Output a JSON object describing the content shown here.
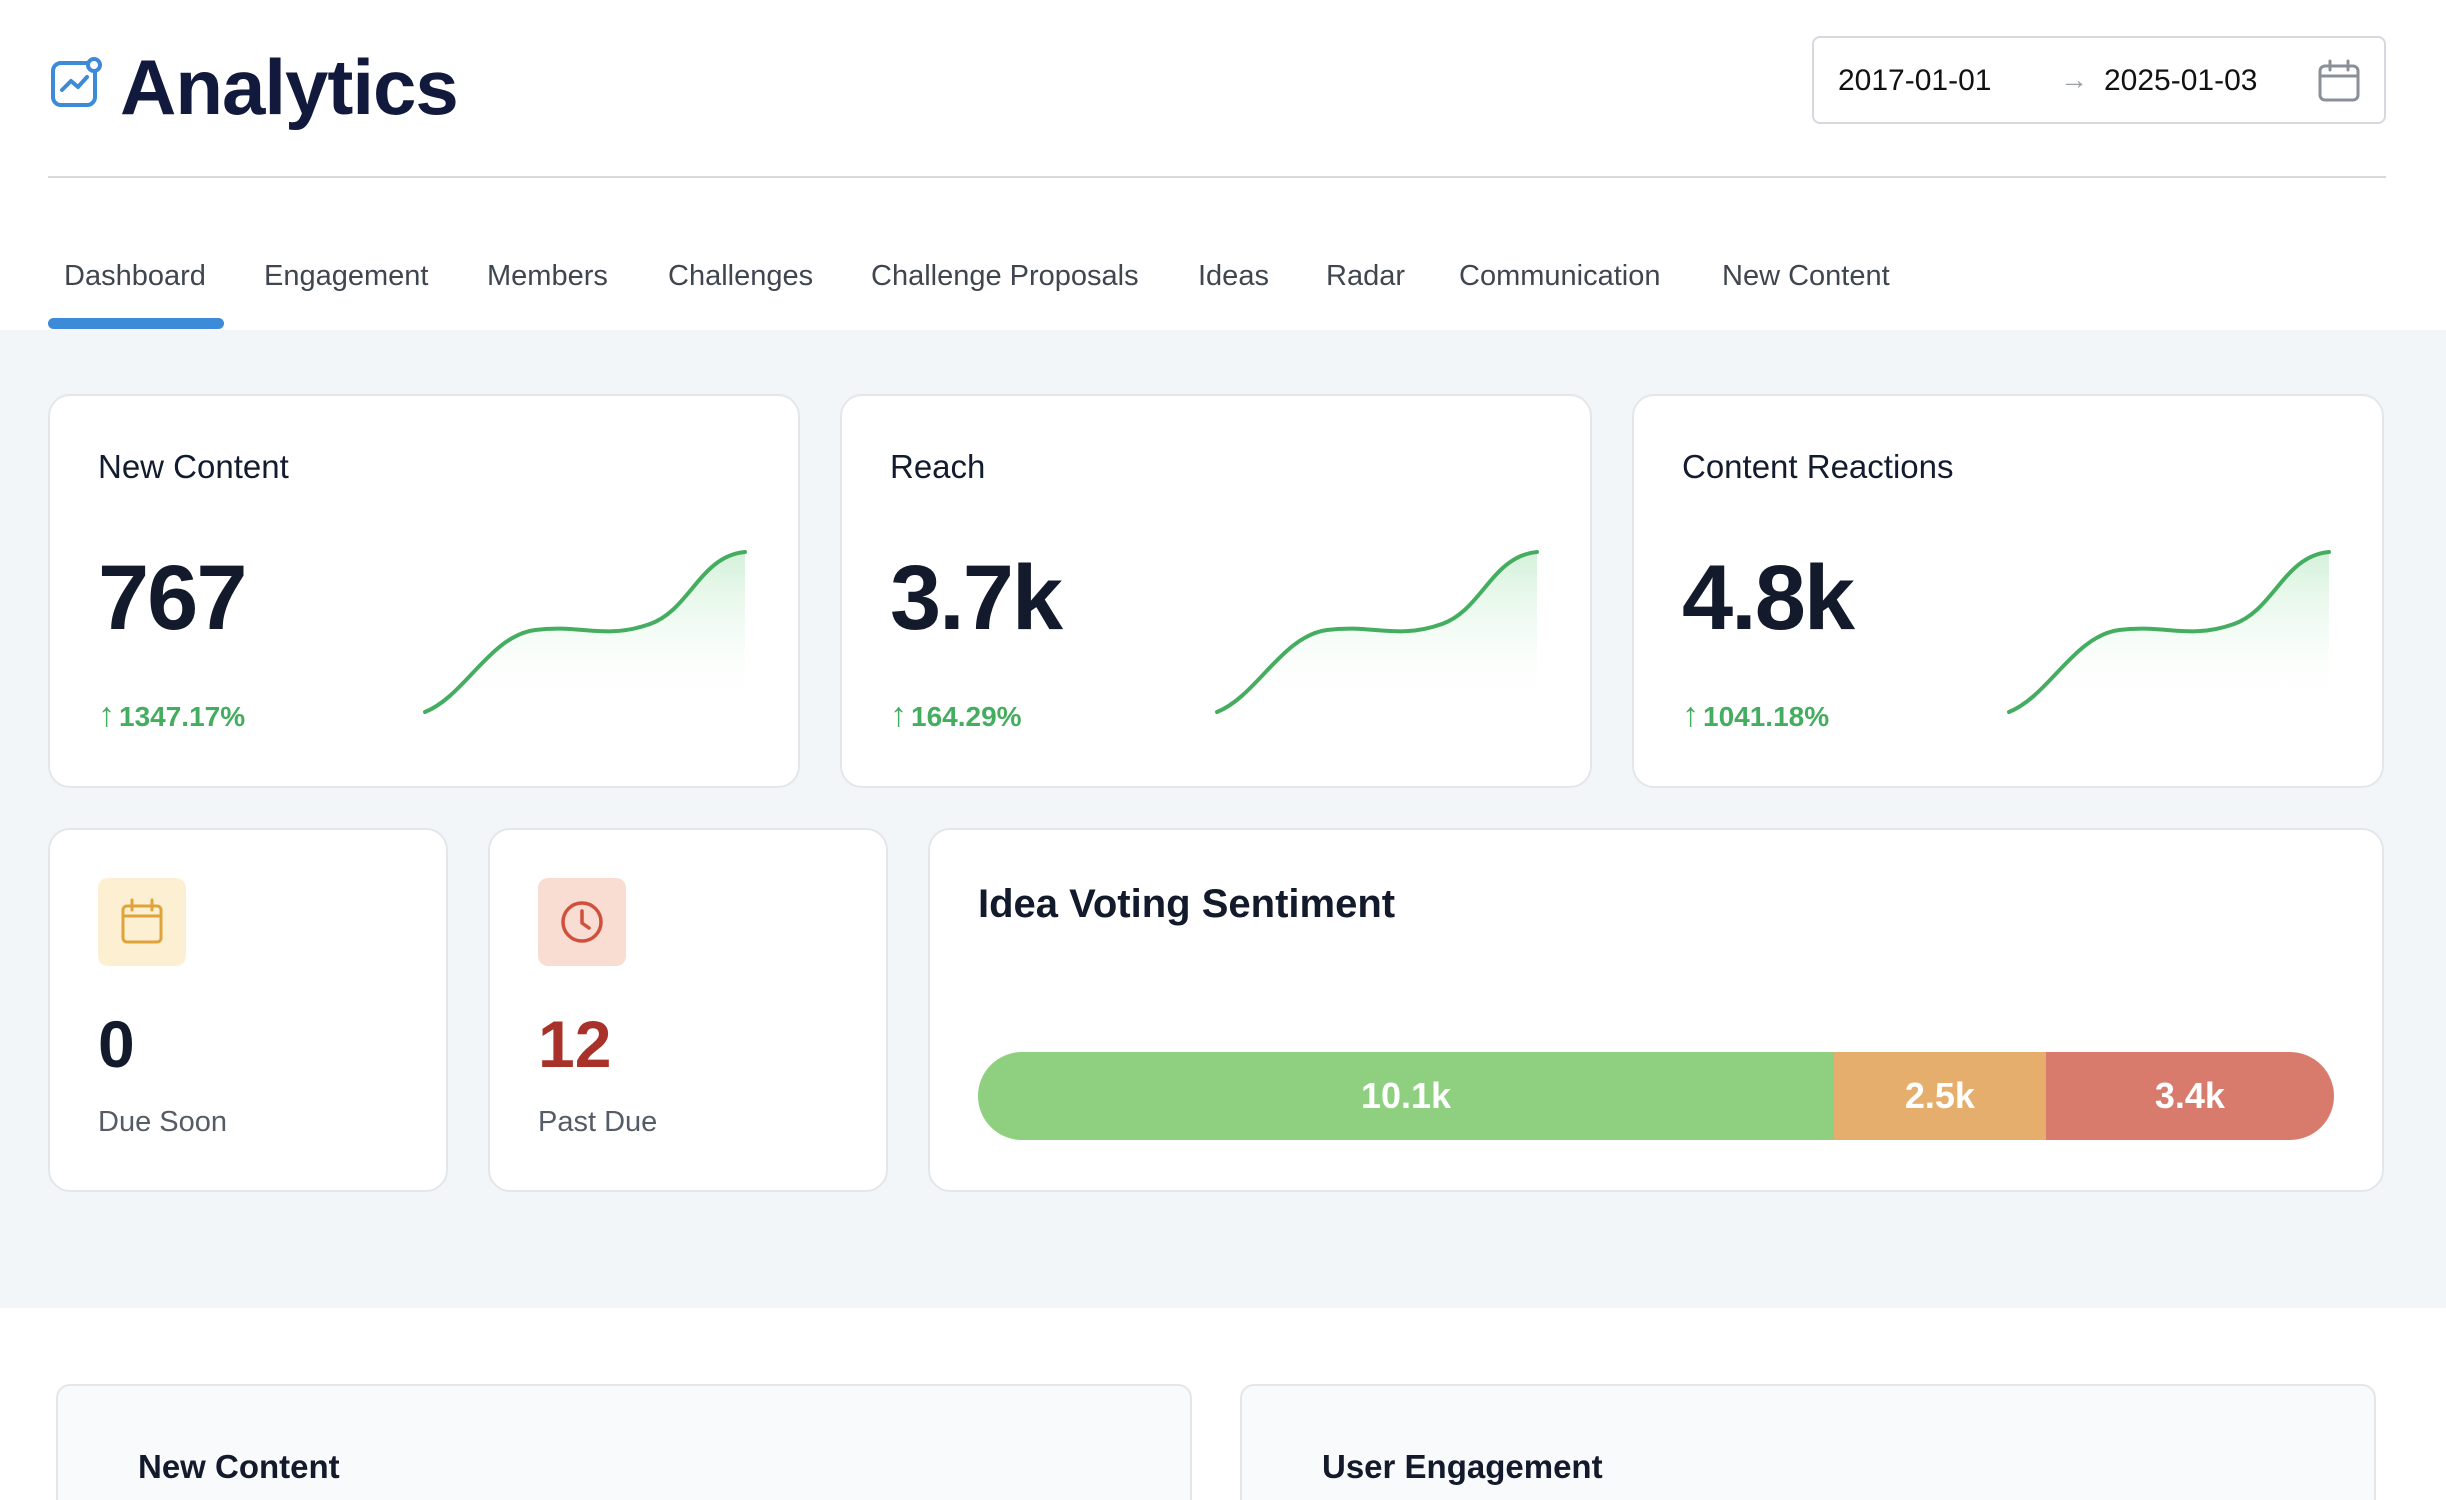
{
  "header": {
    "title": "Analytics",
    "icon": "analytics-chart-icon",
    "date_start": "2017-01-01",
    "date_separator": "→",
    "date_end": "2025-01-03",
    "calendar_icon": "calendar-icon"
  },
  "tabs": [
    {
      "label": "Dashboard",
      "active": true
    },
    {
      "label": "Engagement"
    },
    {
      "label": "Members"
    },
    {
      "label": "Challenges"
    },
    {
      "label": "Challenge Proposals"
    },
    {
      "label": "Ideas"
    },
    {
      "label": "Radar"
    },
    {
      "label": "Communication"
    },
    {
      "label": "New Content"
    }
  ],
  "colors": {
    "accent": "#3c8ad8",
    "positive": "#44ad5f",
    "sent_positive": "#8ed080",
    "sent_neutral": "#e6ae6c",
    "sent_negative": "#d97b6c",
    "due_soon_bg": "#fdf0d2",
    "past_due_bg": "#f9dcd2",
    "past_due_value": "#a8322a"
  },
  "stats": [
    {
      "title": "New Content",
      "value": "767",
      "change": "1347.17%",
      "trend": "up"
    },
    {
      "title": "Reach",
      "value": "3.7k",
      "change": "164.29%",
      "trend": "up"
    },
    {
      "title": "Content Reactions",
      "value": "4.8k",
      "change": "1041.18%",
      "trend": "up"
    }
  ],
  "due": {
    "due_soon": {
      "value": "0",
      "label": "Due Soon",
      "icon": "calendar-icon"
    },
    "past_due": {
      "value": "12",
      "label": "Past Due",
      "icon": "clock-icon"
    }
  },
  "sentiment": {
    "title": "Idea Voting Sentiment",
    "positive": {
      "label": "10.1k",
      "value": 10100
    },
    "neutral": {
      "label": "2.5k",
      "value": 2500
    },
    "negative": {
      "label": "3.4k",
      "value": 3400
    }
  },
  "bottom": {
    "left_title": "New Content",
    "right_title": "User Engagement"
  }
}
